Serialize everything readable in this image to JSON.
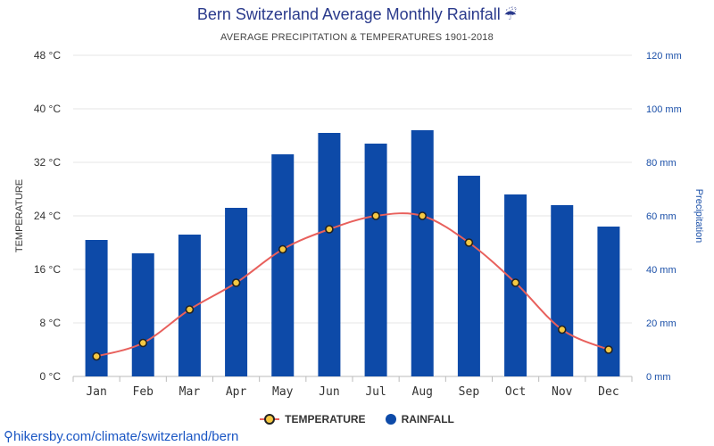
{
  "chart_data": {
    "type": "bar",
    "title": "Bern Switzerland Average Monthly Rainfall",
    "subtitle": "AVERAGE PRECIPITATION & TEMPERATURES 1901-2018",
    "categories": [
      "Jan",
      "Feb",
      "Mar",
      "Apr",
      "May",
      "Jun",
      "Jul",
      "Aug",
      "Sep",
      "Oct",
      "Nov",
      "Dec"
    ],
    "series": [
      {
        "name": "RAINFALL",
        "type": "bar",
        "axis": "right",
        "unit": "mm",
        "color": "#0d4aa8",
        "values": [
          51,
          46,
          53,
          63,
          83,
          91,
          87,
          92,
          75,
          68,
          64,
          56
        ]
      },
      {
        "name": "TEMPERATURE",
        "type": "line",
        "axis": "left",
        "unit": "°C",
        "color": "#e8605c",
        "marker_color": "#f5c842",
        "values": [
          3,
          5,
          10,
          14,
          19,
          22,
          24,
          24,
          20,
          14,
          7,
          4
        ]
      }
    ],
    "ylabel_left": "TEMPERATURE",
    "ylabel_right": "Precipitation",
    "ylim_left": [
      0,
      48
    ],
    "ylim_right": [
      0,
      120
    ],
    "yticks_left": [
      "0 °C",
      "8 °C",
      "16 °C",
      "24 °C",
      "32 °C",
      "40 °C",
      "48 °C"
    ],
    "yticks_right": [
      "0 mm",
      "20 mm",
      "40 mm",
      "60 mm",
      "80 mm",
      "100 mm",
      "120 mm"
    ],
    "grid": true,
    "legend_position": "bottom-center"
  },
  "legend": {
    "temperature": "TEMPERATURE",
    "rainfall": "RAINFALL"
  },
  "source": "hikersby.com/climate/switzerland/bern",
  "colors": {
    "title": "#2a3a8c",
    "grid": "#e6e6e6"
  }
}
